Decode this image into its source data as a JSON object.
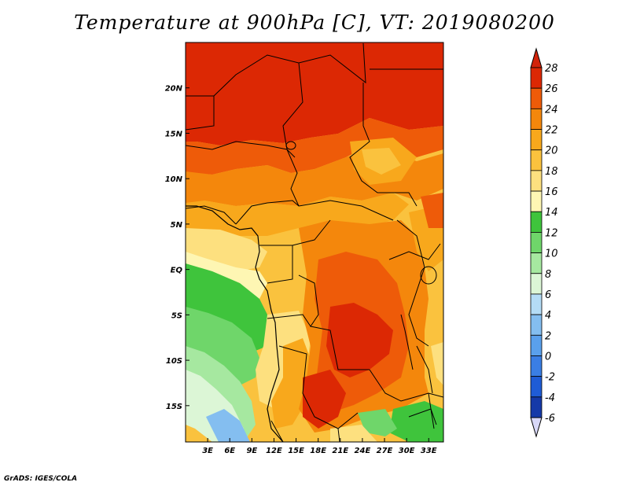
{
  "title": "Temperature at 900hPa [C], VT: 2019080200",
  "credit": "GrADS: IGES/COLA",
  "map": {
    "lon_range": [
      0,
      35
    ],
    "lat_range": [
      -19,
      25
    ],
    "lon_ticks": [
      {
        "value": 3,
        "label": "3E"
      },
      {
        "value": 6,
        "label": "6E"
      },
      {
        "value": 9,
        "label": "9E"
      },
      {
        "value": 12,
        "label": "12E"
      },
      {
        "value": 15,
        "label": "15E"
      },
      {
        "value": 18,
        "label": "18E"
      },
      {
        "value": 21,
        "label": "21E"
      },
      {
        "value": 24,
        "label": "24E"
      },
      {
        "value": 27,
        "label": "27E"
      },
      {
        "value": 30,
        "label": "30E"
      },
      {
        "value": 33,
        "label": "33E"
      }
    ],
    "lat_ticks": [
      {
        "value": 20,
        "label": "20N"
      },
      {
        "value": 15,
        "label": "15N"
      },
      {
        "value": 10,
        "label": "10N"
      },
      {
        "value": 5,
        "label": "5N"
      },
      {
        "value": 0,
        "label": "EQ"
      },
      {
        "value": -5,
        "label": "5S"
      },
      {
        "value": -10,
        "label": "10S"
      },
      {
        "value": -15,
        "label": "15S"
      }
    ]
  },
  "colorbar": {
    "levels": [
      28,
      26,
      24,
      22,
      20,
      18,
      16,
      14,
      12,
      10,
      8,
      6,
      4,
      2,
      0,
      -2,
      -4,
      -6
    ],
    "labels": [
      "28",
      "26",
      "24",
      "22",
      "20",
      "18",
      "16",
      "14",
      "12",
      "10",
      "8",
      "6",
      "4",
      "2",
      "0",
      "-2",
      "-4",
      "-6"
    ],
    "colors": [
      "#dc2804",
      "#ee5b09",
      "#f4870c",
      "#f8a81c",
      "#fac23e",
      "#fde07f",
      "#fef6b3",
      "#3fc43c",
      "#6fd66a",
      "#a6e8a0",
      "#dcf6d6",
      "#b4dcf6",
      "#84bef0",
      "#5aa0ec",
      "#3a7ee4",
      "#1f5cd6",
      "#1539a8",
      "#0a1d78"
    ],
    "top_arrow_color": "#d2230a",
    "bottom_arrow_color": "#d8d8f8"
  }
}
